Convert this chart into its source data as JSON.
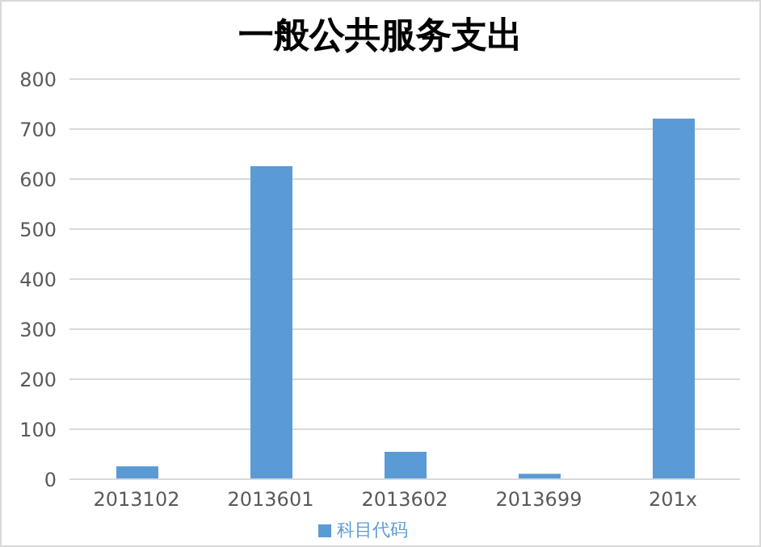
{
  "chart_data": {
    "type": "bar",
    "title": "一般公共服务支出",
    "categories": [
      "2013102",
      "2013601",
      "2013602",
      "2013699",
      "201x"
    ],
    "series": [
      {
        "name": "科目代码",
        "color": "#5b9bd5",
        "values": [
          26,
          626,
          55,
          11,
          721
        ]
      }
    ],
    "ylim": [
      0,
      800
    ],
    "yticks": [
      0,
      100,
      200,
      300,
      400,
      500,
      600,
      700,
      800
    ],
    "grid": "y",
    "legend": "bottom"
  }
}
